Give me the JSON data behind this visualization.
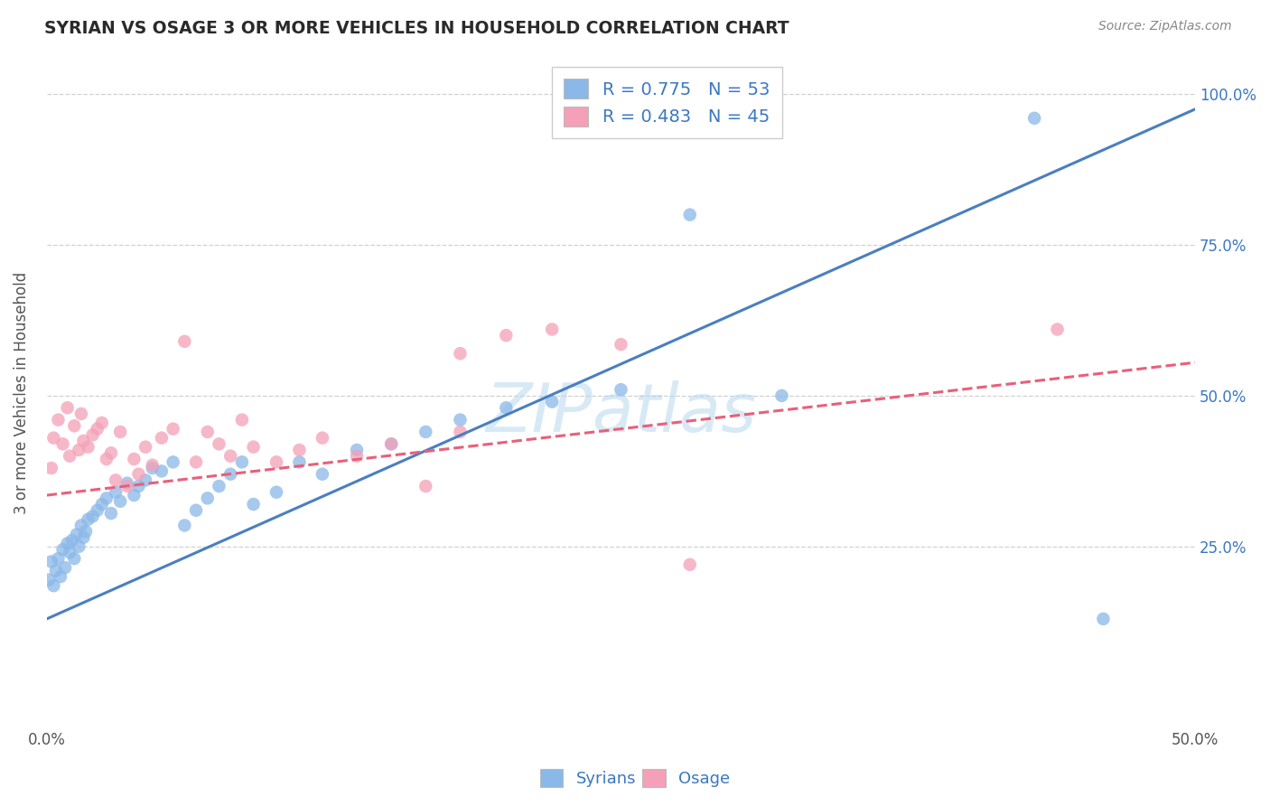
{
  "title": "SYRIAN VS OSAGE 3 OR MORE VEHICLES IN HOUSEHOLD CORRELATION CHART",
  "source_text": "Source: ZipAtlas.com",
  "ylabel": "3 or more Vehicles in Household",
  "ytick_labels": [
    "25.0%",
    "50.0%",
    "75.0%",
    "100.0%"
  ],
  "ytick_values": [
    0.25,
    0.5,
    0.75,
    1.0
  ],
  "legend_label1": "R = 0.775   N = 53",
  "legend_label2": "R = 0.483   N = 45",
  "syrians_color": "#8AB8E8",
  "osage_color": "#F4A0B8",
  "syrians_line_color": "#4A7FC1",
  "osage_line_color": "#E8607A",
  "watermark_color": "#B8D8F0",
  "xlim": [
    0.0,
    0.5
  ],
  "ylim": [
    -0.05,
    1.06
  ],
  "background_color": "#ffffff",
  "grid_color": "#d0d0d0",
  "legend_text_color": "#3A78C1",
  "syrians_line": {
    "x0": 0.0,
    "y0": 0.13,
    "x1": 0.5,
    "y1": 0.975
  },
  "osage_line": {
    "x0": 0.0,
    "y0": 0.335,
    "x1": 0.5,
    "y1": 0.555
  },
  "syrians_x": [
    0.001,
    0.002,
    0.003,
    0.004,
    0.005,
    0.006,
    0.007,
    0.008,
    0.009,
    0.01,
    0.011,
    0.012,
    0.013,
    0.014,
    0.015,
    0.016,
    0.017,
    0.018,
    0.02,
    0.022,
    0.024,
    0.026,
    0.028,
    0.03,
    0.032,
    0.035,
    0.038,
    0.04,
    0.043,
    0.046,
    0.05,
    0.055,
    0.06,
    0.065,
    0.07,
    0.075,
    0.08,
    0.085,
    0.09,
    0.1,
    0.11,
    0.12,
    0.135,
    0.15,
    0.165,
    0.18,
    0.2,
    0.22,
    0.25,
    0.28,
    0.32,
    0.43,
    0.46
  ],
  "syrians_y": [
    0.195,
    0.225,
    0.185,
    0.21,
    0.23,
    0.2,
    0.245,
    0.215,
    0.255,
    0.24,
    0.26,
    0.23,
    0.27,
    0.25,
    0.285,
    0.265,
    0.275,
    0.295,
    0.3,
    0.31,
    0.32,
    0.33,
    0.305,
    0.34,
    0.325,
    0.355,
    0.335,
    0.35,
    0.36,
    0.38,
    0.375,
    0.39,
    0.285,
    0.31,
    0.33,
    0.35,
    0.37,
    0.39,
    0.32,
    0.34,
    0.39,
    0.37,
    0.41,
    0.42,
    0.44,
    0.46,
    0.48,
    0.49,
    0.51,
    0.8,
    0.5,
    0.96,
    0.13
  ],
  "osage_x": [
    0.002,
    0.003,
    0.005,
    0.007,
    0.009,
    0.01,
    0.012,
    0.014,
    0.015,
    0.016,
    0.018,
    0.02,
    0.022,
    0.024,
    0.026,
    0.028,
    0.03,
    0.032,
    0.035,
    0.038,
    0.04,
    0.043,
    0.046,
    0.05,
    0.055,
    0.06,
    0.065,
    0.07,
    0.075,
    0.08,
    0.085,
    0.09,
    0.1,
    0.11,
    0.12,
    0.135,
    0.15,
    0.165,
    0.18,
    0.2,
    0.22,
    0.25,
    0.28,
    0.44,
    0.18
  ],
  "osage_y": [
    0.38,
    0.43,
    0.46,
    0.42,
    0.48,
    0.4,
    0.45,
    0.41,
    0.47,
    0.425,
    0.415,
    0.435,
    0.445,
    0.455,
    0.395,
    0.405,
    0.36,
    0.44,
    0.35,
    0.395,
    0.37,
    0.415,
    0.385,
    0.43,
    0.445,
    0.59,
    0.39,
    0.44,
    0.42,
    0.4,
    0.46,
    0.415,
    0.39,
    0.41,
    0.43,
    0.4,
    0.42,
    0.35,
    0.44,
    0.6,
    0.61,
    0.585,
    0.22,
    0.61,
    0.57
  ]
}
